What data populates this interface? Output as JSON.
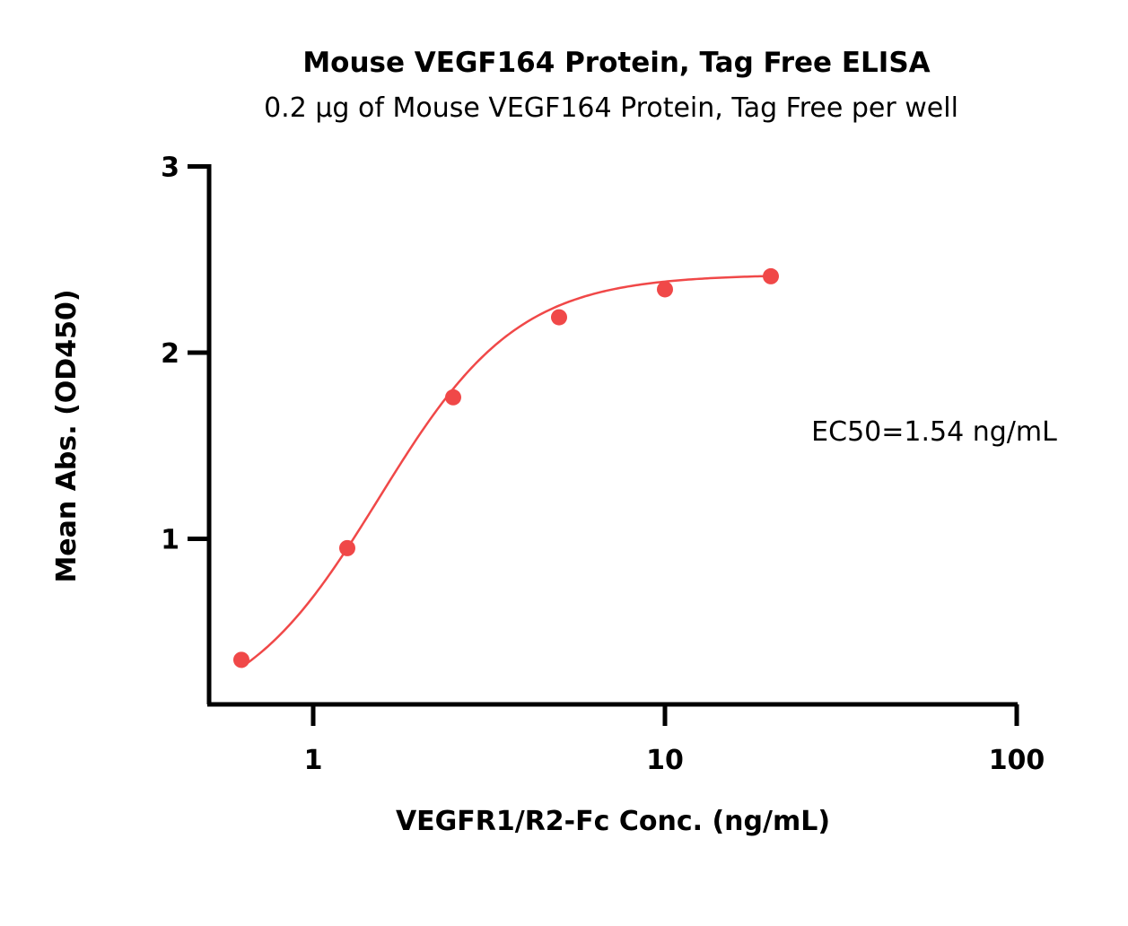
{
  "chart_data": {
    "type": "scatter",
    "title": "Mouse VEGF164 Protein, Tag Free ELISA",
    "subtitle": "0.2 µg of Mouse VEGF164 Protein, Tag Free per well",
    "xlabel": "VEGFR1/R2-Fc Conc. (ng/mL)",
    "ylabel": "Mean Abs. (OD450)",
    "x_scale": "log",
    "xlim": [
      0.5,
      100
    ],
    "ylim": [
      0.1,
      3
    ],
    "x_ticks": [
      1,
      10,
      100
    ],
    "x_tick_labels": [
      "1",
      "10",
      "100"
    ],
    "y_ticks": [
      1,
      2,
      3
    ],
    "y_tick_labels": [
      "1",
      "2",
      "3"
    ],
    "grid": false,
    "annotation": "EC50=1.54 ng/mL",
    "series": [
      {
        "x": [
          0.625,
          1.25,
          2.5,
          5,
          10,
          20
        ],
        "y": [
          0.35,
          0.95,
          1.76,
          2.19,
          2.34,
          2.41
        ],
        "color": "#f04848",
        "fit": "4PL",
        "ec50": 1.54
      }
    ]
  }
}
